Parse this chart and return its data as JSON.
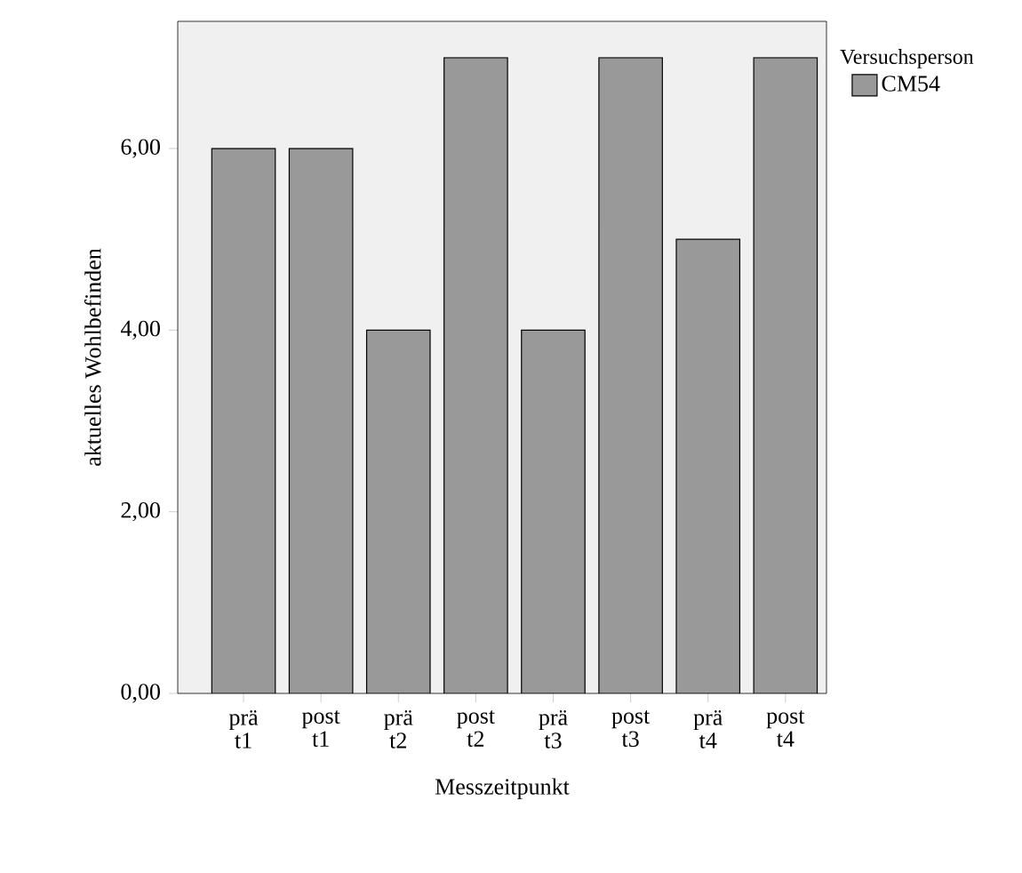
{
  "chart_data": {
    "type": "bar",
    "xlabel": "Messzeitpunkt",
    "ylabel": "aktuelles Wohlbefinden",
    "legend_title": "Versuchsperson",
    "categories": [
      "prä t1",
      "post t1",
      "prä t2",
      "post t2",
      "prä t3",
      "post t3",
      "prä t4",
      "post t4"
    ],
    "series": [
      {
        "name": "CM54",
        "color": "#999999",
        "values": [
          6,
          6,
          4,
          7,
          4,
          7,
          5,
          7
        ]
      }
    ],
    "ylim": [
      0,
      7.4
    ],
    "yticks": [
      {
        "value": 0,
        "label": "0,00"
      },
      {
        "value": 2,
        "label": "2,00"
      },
      {
        "value": 4,
        "label": "4,00"
      },
      {
        "value": 6,
        "label": "6,00"
      }
    ],
    "grid": false,
    "legend": "top right"
  }
}
